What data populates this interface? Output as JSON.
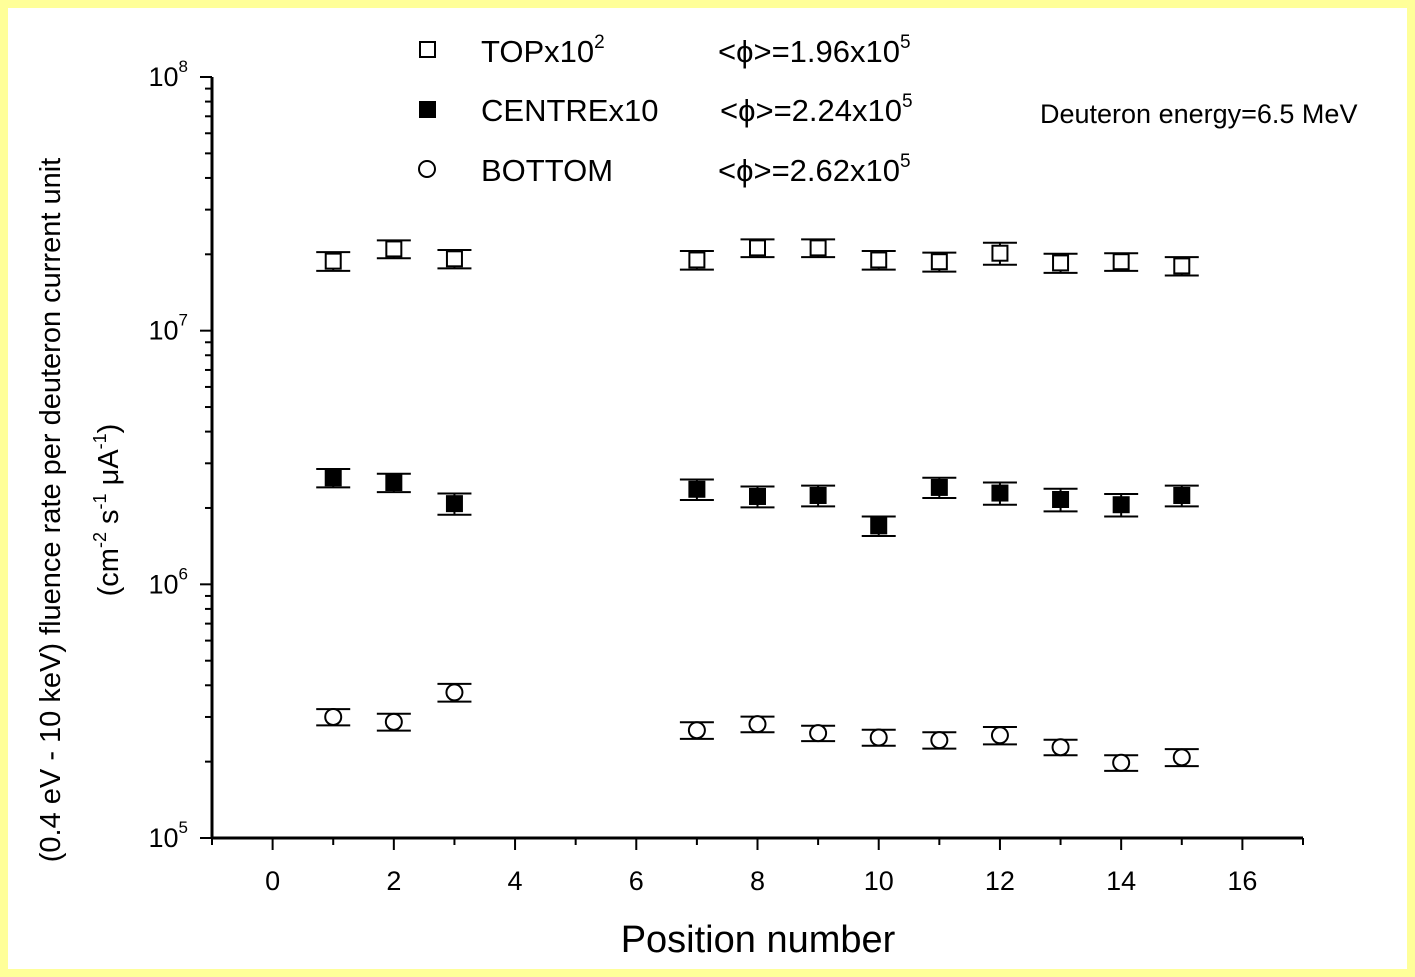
{
  "chart_data": {
    "type": "scatter",
    "xlabel": "Position number",
    "ylabel_line1": "(0.4 eV - 10 keV)  fluence rate per deuteron current unit",
    "ylabel_line2": {
      "open": "(cm",
      "e1": "-2",
      "s": " s",
      "e2": "-1",
      "mu": " μA",
      "e3": "-1",
      "close": ")"
    },
    "annotation": "Deuteron energy=6.5 MeV",
    "xlim": [
      -1,
      17
    ],
    "ylim": [
      100000,
      100000000
    ],
    "yscale": "log",
    "x_ticks": [
      0,
      2,
      4,
      6,
      8,
      10,
      12,
      14,
      16
    ],
    "x_tick_labels": [
      "0",
      "2",
      "4",
      "6",
      "8",
      "10",
      "12",
      "14",
      "16"
    ],
    "y_ticks": [
      {
        "value": 100000,
        "base": "10",
        "exp": "5"
      },
      {
        "value": 1000000,
        "base": "10",
        "exp": "6"
      },
      {
        "value": 10000000,
        "base": "10",
        "exp": "7"
      },
      {
        "value": 100000000,
        "base": "10",
        "exp": "8"
      }
    ],
    "series": [
      {
        "name_base": "TOPx10",
        "name_exp": "2",
        "mean_prefix": "<ϕ>=1.96x10",
        "mean_exp": "5",
        "marker": "open-square",
        "x": [
          1,
          2,
          3,
          7,
          8,
          9,
          10,
          11,
          12,
          13,
          14,
          15
        ],
        "y": [
          18800000,
          21000000,
          19200000,
          19000000,
          21200000,
          21200000,
          19000000,
          18700000,
          20200000,
          18500000,
          18700000,
          18000000
        ],
        "err": [
          1600000,
          1700000,
          1600000,
          1600000,
          1700000,
          1700000,
          1600000,
          1600000,
          2000000,
          1600000,
          1500000,
          1500000
        ]
      },
      {
        "name_base": "CENTREx10",
        "name_exp": "",
        "mean_prefix": "<ϕ>=2.24x10",
        "mean_exp": "5",
        "marker": "filled-square",
        "x": [
          1,
          2,
          3,
          7,
          8,
          9,
          10,
          11,
          12,
          13,
          14,
          15
        ],
        "y": [
          2630000,
          2520000,
          2080000,
          2370000,
          2220000,
          2240000,
          1700000,
          2410000,
          2290000,
          2160000,
          2060000,
          2240000
        ],
        "err": [
          220000,
          210000,
          200000,
          220000,
          210000,
          210000,
          150000,
          220000,
          230000,
          220000,
          210000,
          210000
        ]
      },
      {
        "name_base": "BOTTOM",
        "name_exp": "",
        "mean_prefix": "<ϕ>=2.62x10",
        "mean_exp": "5",
        "marker": "open-circle",
        "x": [
          1,
          2,
          3,
          7,
          8,
          9,
          10,
          11,
          12,
          13,
          14,
          15
        ],
        "y": [
          300000,
          287000,
          375000,
          266000,
          281000,
          259000,
          249000,
          243000,
          254000,
          228000,
          198000,
          208000
        ],
        "err": [
          22000,
          22000,
          30000,
          20000,
          20000,
          18000,
          18000,
          18000,
          20000,
          16000,
          14000,
          16000
        ]
      }
    ]
  }
}
